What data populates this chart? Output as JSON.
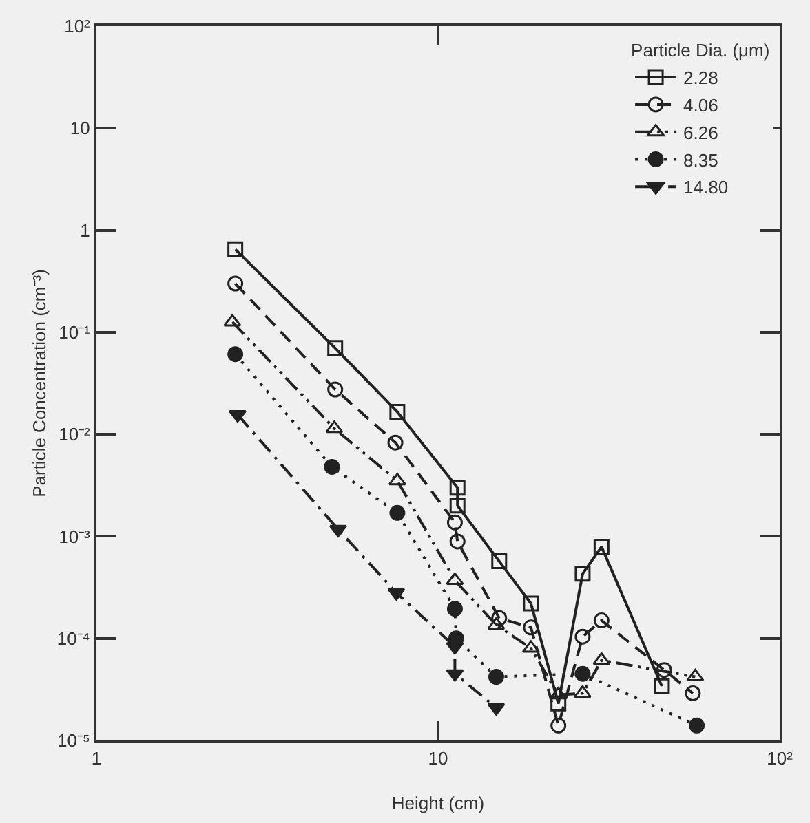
{
  "chart_data": {
    "type": "line",
    "xlabel": "Height (cm)",
    "ylabel": "Particle Concentration (cm⁻³)",
    "legend_title": "Particle Dia. (μm)",
    "log": "xy",
    "grid": false,
    "legend": "top right",
    "xlim": [
      1,
      100
    ],
    "xticks": [
      1,
      10,
      {
        "value": 100,
        "label": "10²"
      }
    ],
    "ylim": [
      1e-05,
      100
    ],
    "yticks": [
      {
        "value": 1e-05,
        "label": "10⁻⁵"
      },
      {
        "value": 0.0001,
        "label": "10⁻⁴"
      },
      {
        "value": 0.001,
        "label": "10⁻³"
      },
      {
        "value": 0.01,
        "label": "10⁻²"
      },
      {
        "value": 0.1,
        "label": "10⁻¹"
      },
      1,
      10,
      {
        "value": 100,
        "label": "10²"
      }
    ],
    "series": [
      {
        "name": "2.28",
        "color": "#222222",
        "line_style": "solid",
        "marker": "square-open",
        "x": [
          2.55,
          5.0,
          7.6,
          11.4,
          11.4,
          15.1,
          18.7,
          22.5,
          26.5,
          30.1,
          45.2
        ],
        "values": [
          0.65,
          0.07,
          0.0166,
          0.003,
          0.002,
          0.00057,
          0.00022,
          2.3e-05,
          0.00043,
          0.00079,
          3.4e-05
        ]
      },
      {
        "name": "4.06",
        "color": "#222222",
        "line_style": "dashed",
        "marker": "circle-open",
        "x": [
          2.55,
          5.0,
          7.5,
          11.2,
          11.4,
          15.1,
          18.7,
          22.5,
          26.5,
          30.1,
          45.9,
          55.7
        ],
        "values": [
          0.3,
          0.0275,
          0.0083,
          0.00137,
          0.00089,
          0.000158,
          0.000128,
          1.4e-05,
          0.000104,
          0.00015,
          4.9e-05,
          2.9e-05
        ]
      },
      {
        "name": "6.26",
        "color": "#222222",
        "line_style": "dashdotdot",
        "marker": "triangle-open",
        "x": [
          2.5,
          4.97,
          7.6,
          11.2,
          14.8,
          18.7,
          22.5,
          26.5,
          30.1,
          56.6
        ],
        "values": [
          0.126,
          0.0114,
          0.0035,
          0.00037,
          0.000135,
          8e-05,
          2.8e-05,
          2.9e-05,
          6.1e-05,
          4.2e-05
        ]
      },
      {
        "name": "8.35",
        "color": "#222222",
        "line_style": "dotted",
        "marker": "circle",
        "x": [
          2.55,
          4.89,
          7.6,
          11.2,
          11.3,
          14.8,
          26.5,
          57.2
        ],
        "values": [
          0.061,
          0.0048,
          0.0017,
          0.000195,
          0.0001,
          4.2e-05,
          4.5e-05,
          1.4e-05
        ]
      },
      {
        "name": "14.80",
        "color": "#222222",
        "line_style": "dashdot",
        "marker": "triangle-down",
        "x": [
          2.59,
          5.1,
          7.55,
          11.2,
          11.2,
          14.8
        ],
        "values": [
          0.0156,
          0.00117,
          0.00028,
          8.3e-05,
          4.5e-05,
          2.1e-05
        ]
      }
    ]
  }
}
